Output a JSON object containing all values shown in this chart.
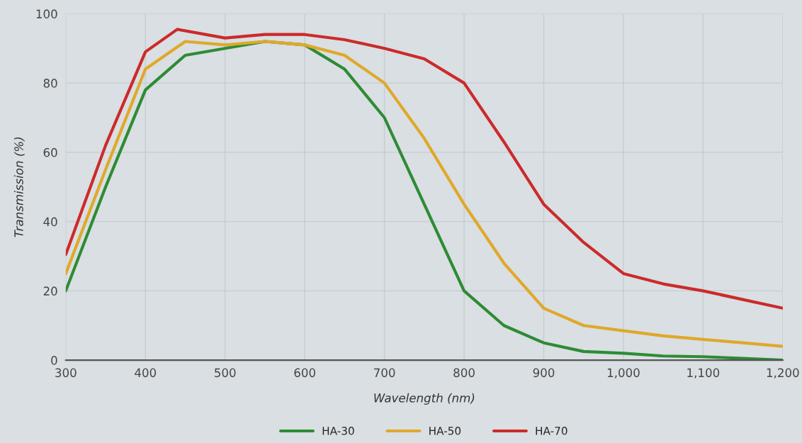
{
  "chart_data": {
    "type": "line",
    "xlabel": "Wavelength (nm)",
    "ylabel": "Transmission (%)",
    "xlim": [
      300,
      1200
    ],
    "ylim": [
      0,
      100
    ],
    "xticks": [
      300,
      400,
      500,
      600,
      700,
      800,
      900,
      {
        "value": 1000,
        "label": "1,000"
      },
      {
        "value": 1100,
        "label": "1,100"
      },
      {
        "value": 1200,
        "label": "1,200"
      }
    ],
    "yticks": [
      0,
      20,
      40,
      60,
      80,
      100
    ],
    "grid": true,
    "legend": "bottom",
    "marker": "none",
    "line_style": "solid",
    "series": [
      {
        "name": "HA-30",
        "color": "#2e8b35",
        "x": [
          300,
          350,
          400,
          450,
          500,
          550,
          600,
          650,
          700,
          750,
          800,
          850,
          900,
          950,
          1000,
          1050,
          1100,
          1150,
          1200
        ],
        "values": [
          20,
          50,
          78,
          88,
          90,
          92,
          91,
          84,
          70,
          45,
          20,
          10,
          5,
          2.5,
          2,
          1.2,
          1,
          0.5,
          0
        ]
      },
      {
        "name": "HA-50",
        "color": "#e0a82a",
        "x": [
          300,
          350,
          400,
          450,
          500,
          550,
          600,
          650,
          700,
          750,
          800,
          850,
          900,
          950,
          1000,
          1050,
          1100,
          1150,
          1200
        ],
        "values": [
          25,
          55,
          84,
          92,
          91,
          92,
          91,
          88,
          80,
          64,
          45,
          28,
          15,
          10,
          8.5,
          7,
          6,
          5,
          4
        ]
      },
      {
        "name": "HA-70",
        "color": "#cc2a2a",
        "x": [
          300,
          350,
          400,
          440,
          500,
          550,
          600,
          650,
          700,
          750,
          800,
          850,
          900,
          950,
          1000,
          1050,
          1100,
          1150,
          1200
        ],
        "values": [
          30.5,
          62,
          89,
          95.5,
          93,
          94,
          94,
          92.5,
          90,
          87,
          80,
          63,
          45,
          34,
          25,
          22,
          20,
          17.5,
          15
        ]
      }
    ]
  }
}
